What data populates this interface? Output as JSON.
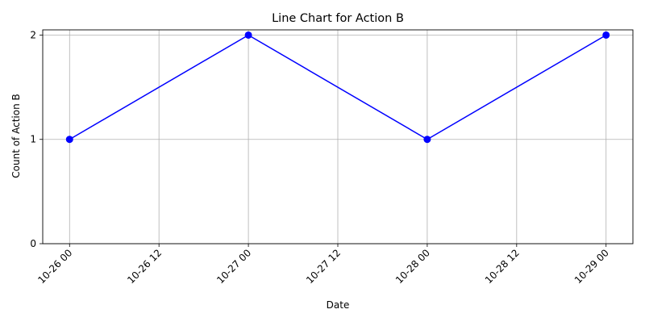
{
  "chart_data": {
    "type": "line",
    "title": "Line Chart for Action B",
    "xlabel": "Date",
    "ylabel": "Count of Action B",
    "x_tick_labels": [
      "10-26 00",
      "10-26 12",
      "10-27 00",
      "10-27 12",
      "10-28 00",
      "10-28 12",
      "10-29 00"
    ],
    "y_tick_labels": [
      "0",
      "1",
      "2"
    ],
    "y_ticks": [
      0,
      1,
      2
    ],
    "ylim": [
      0,
      2.05
    ],
    "xlim": [
      "10-25 20:24",
      "10-29 03:36"
    ],
    "grid": true,
    "series": [
      {
        "x": [
          "10-26 00",
          "10-27 00",
          "10-28 00",
          "10-29 00"
        ],
        "values": [
          1,
          2,
          1,
          2
        ],
        "color": "#0000ff",
        "marker": "circle"
      }
    ]
  }
}
